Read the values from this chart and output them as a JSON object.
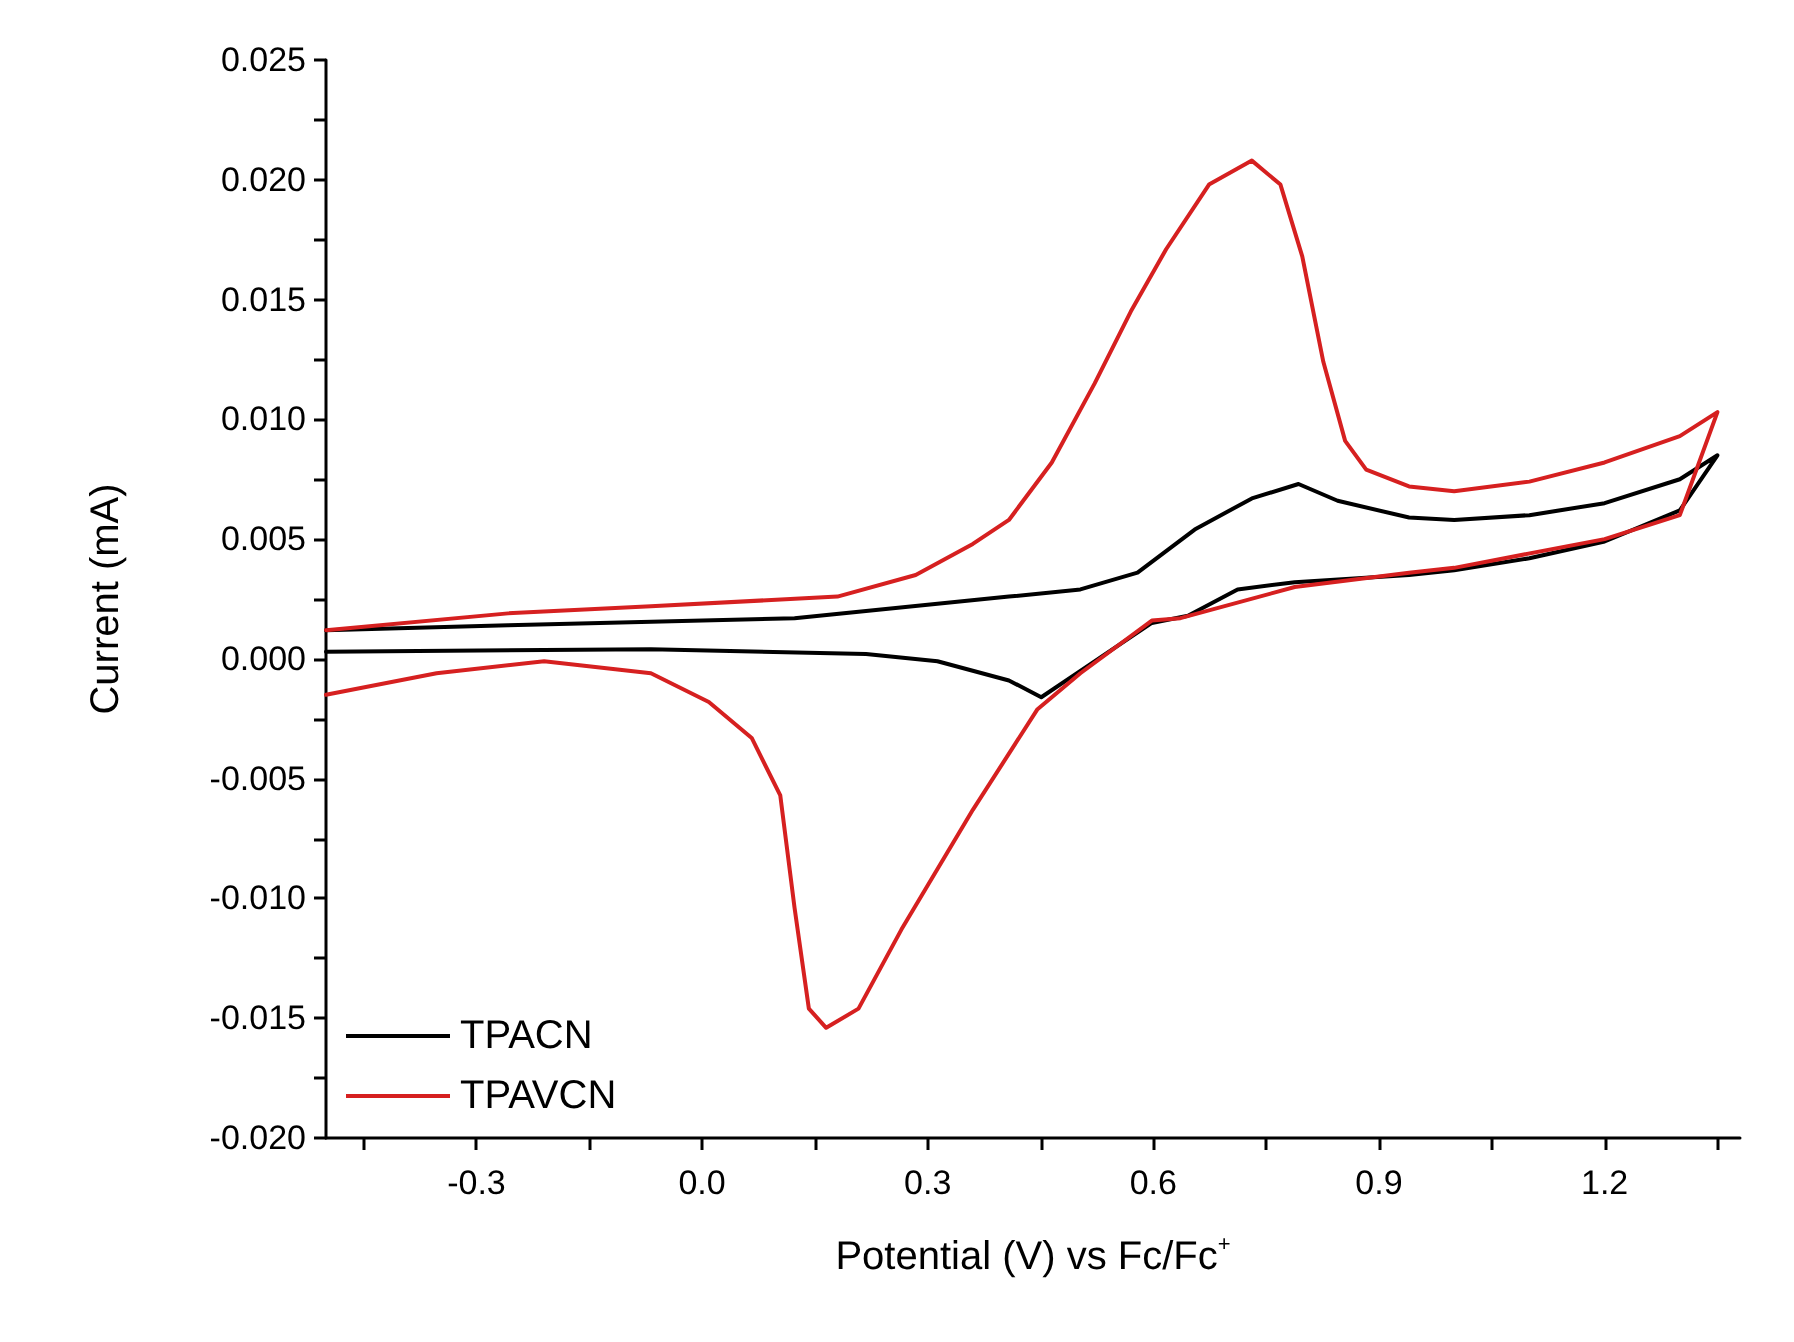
{
  "chart_data": {
    "type": "line",
    "xlabel": "Potential (V) vs Fc/Fc$^{+}$",
    "ylabel": "Current (mA)",
    "xlim": [
      -0.5,
      1.38
    ],
    "xticks": [
      {
        "value": -0.45,
        "label": null
      },
      {
        "value": -0.3,
        "label": "-0.3"
      },
      {
        "value": -0.15,
        "label": null
      },
      {
        "value": 0,
        "label": "0.0"
      },
      {
        "value": 0.15,
        "label": null
      },
      {
        "value": 0.3,
        "label": "0.3"
      },
      {
        "value": 0.45,
        "label": null
      },
      {
        "value": 0.6,
        "label": "0.6"
      },
      {
        "value": 0.75,
        "label": null
      },
      {
        "value": 0.9,
        "label": "0.9"
      },
      {
        "value": 1.05,
        "label": null
      },
      {
        "value": 1.2,
        "label": "1.2"
      },
      {
        "value": 1.35,
        "label": null
      }
    ],
    "ylim": [
      -0.02,
      0.025
    ],
    "yticks": [
      {
        "value": -0.02,
        "label": "-0.020"
      },
      {
        "value": -0.0175,
        "label": null
      },
      -0.015,
      {
        "value": -0.0125,
        "label": null
      },
      {
        "value": -0.01,
        "label": "-0.010"
      },
      {
        "value": -0.0075,
        "label": null
      },
      -0.005,
      {
        "value": -0.0025,
        "label": null
      },
      {
        "value": 0,
        "label": "0.000"
      },
      {
        "value": 0.0025,
        "label": null
      },
      0.005,
      {
        "value": 0.0075,
        "label": null
      },
      {
        "value": 0.01,
        "label": "0.010"
      },
      {
        "value": 0.0125,
        "label": null
      },
      0.015,
      {
        "value": 0.0175,
        "label": null
      },
      {
        "value": 0.02,
        "label": "0.020"
      },
      {
        "value": 0.0225,
        "label": null
      },
      0.025
    ],
    "grid": false,
    "legend": "bottom left",
    "marker": "none",
    "line_style": "solid",
    "series": [
      {
        "name": "TPACN",
        "color": "#000000",
        "x": [
          -0.5,
          -0.258,
          0.123,
          0.218,
          0.408,
          0.503,
          0.579,
          0.655,
          0.731,
          0.793,
          0.845,
          0.94,
          1.0,
          1.1,
          1.2,
          1.3,
          1.35,
          1.3,
          1.2,
          1.1,
          1.0,
          0.94,
          0.788,
          0.712,
          0.646,
          0.598,
          0.503,
          0.451,
          0.408,
          0.313,
          0.218,
          -0.068,
          -0.5
        ],
        "values": [
          0.0012,
          0.0014,
          0.0017,
          0.002,
          0.0026,
          0.0029,
          0.0036,
          0.0054,
          0.0067,
          0.0073,
          0.0066,
          0.0059,
          0.0058,
          0.006,
          0.0065,
          0.0075,
          0.0085,
          0.0062,
          0.0049,
          0.0042,
          0.0037,
          0.0035,
          0.0032,
          0.0029,
          0.0018,
          0.0015,
          -0.0005,
          -0.0016,
          -0.0009,
          -0.0001,
          0.0002,
          0.0004,
          0.0003
        ]
      },
      {
        "name": "TPAVCN",
        "color": "#d62020",
        "x": [
          -0.5,
          -0.258,
          -0.068,
          0.18,
          0.284,
          0.36,
          0.408,
          0.465,
          0.522,
          0.57,
          0.617,
          0.674,
          0.731,
          0.769,
          0.798,
          0.826,
          0.855,
          0.883,
          0.94,
          1.0,
          1.1,
          1.2,
          1.3,
          1.35,
          1.3,
          1.2,
          1.0,
          0.94,
          0.788,
          0.636,
          0.598,
          0.503,
          0.446,
          0.36,
          0.265,
          0.208,
          0.165,
          0.142,
          0.123,
          0.104,
          0.066,
          0.009,
          -0.068,
          -0.21,
          -0.353,
          -0.5
        ],
        "values": [
          0.0012,
          0.0019,
          0.0022,
          0.0026,
          0.0035,
          0.0048,
          0.0058,
          0.0082,
          0.0115,
          0.0145,
          0.0171,
          0.0198,
          0.0208,
          0.0198,
          0.0168,
          0.0124,
          0.0091,
          0.0079,
          0.0072,
          0.007,
          0.0074,
          0.0082,
          0.0093,
          0.0103,
          0.006,
          0.005,
          0.0038,
          0.0036,
          0.003,
          0.0017,
          0.0016,
          -0.0006,
          -0.0021,
          -0.0063,
          -0.0113,
          -0.0146,
          -0.0154,
          -0.0146,
          -0.0104,
          -0.0057,
          -0.0033,
          -0.0018,
          -0.0006,
          -0.0001,
          -0.0006,
          -0.0015
        ]
      }
    ]
  }
}
